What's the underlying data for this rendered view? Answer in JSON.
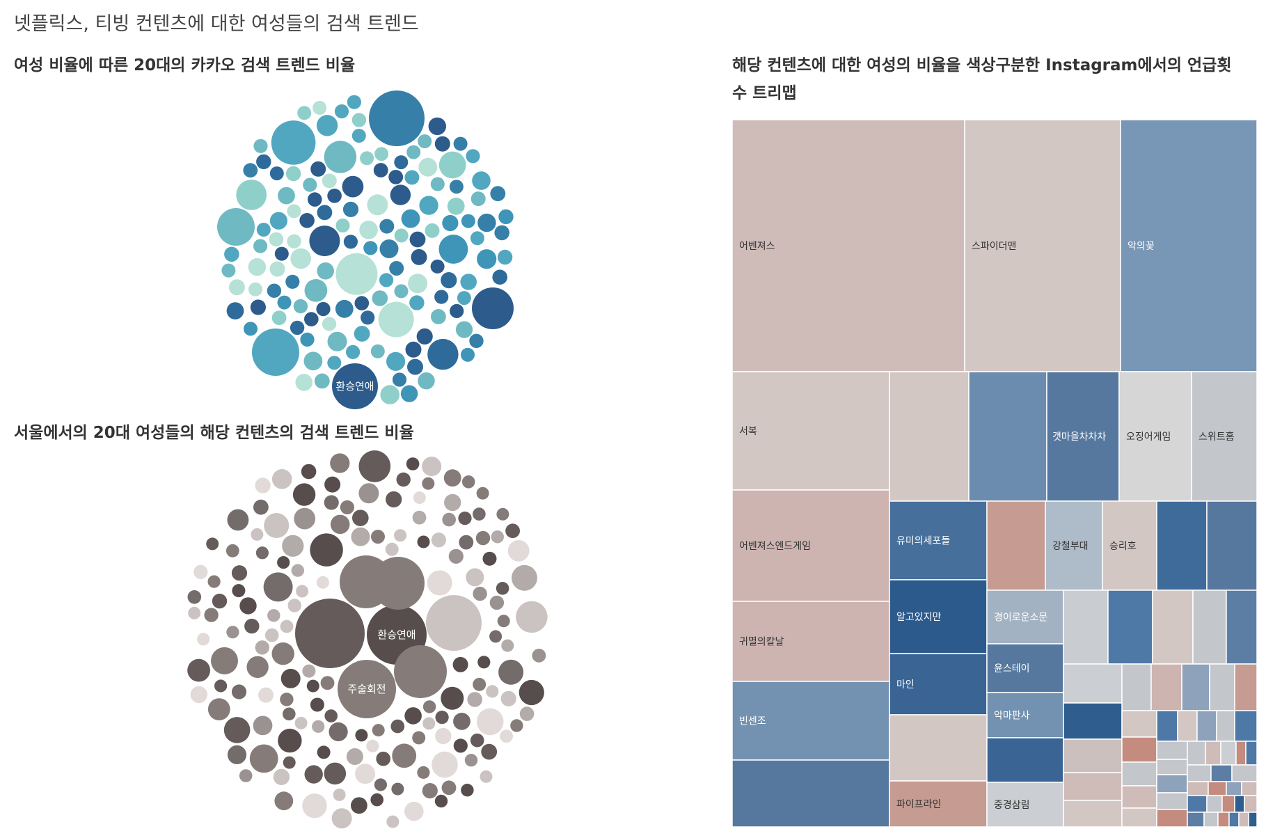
{
  "dashboard": {
    "title": "넷플릭스, 티빙 컨텐츠에 대한 여성들의 검색 트렌드"
  },
  "chart_data": [
    {
      "type": "bubble",
      "title": "여성 비율에 따른 20대의 카카오 검색 트렌드 비율",
      "labeled_bubbles": [
        {
          "label": "환승연애"
        }
      ],
      "palette": [
        "#b6e1d6",
        "#8fcfc9",
        "#6fb9c3",
        "#52a7c0",
        "#3e95b8",
        "#357fa9",
        "#2f6b9a",
        "#2c5b8c"
      ]
    },
    {
      "type": "bubble",
      "title": "서울에서의 20대 여성들의 해당 컨텐츠의 검색 트렌드 비율",
      "labeled_bubbles": [
        {
          "label": "환승연애"
        },
        {
          "label": "주술회전"
        }
      ],
      "palette": [
        "#e2dad8",
        "#cbc3c1",
        "#b3aba9",
        "#9a9290",
        "#857c7a",
        "#746c6a",
        "#655b5a",
        "#564d4c"
      ]
    },
    {
      "type": "treemap",
      "title": "해당 컨텐츠에 대한 여성의 비율을 색상구분한 Instagram에서의 언급횟수 트리맵",
      "labels": [
        "어벤져스",
        "스파이더맨",
        "악의꽃",
        "서복",
        "갯마을차차차",
        "오징어게임",
        "스위트홈",
        "어벤져스엔드게임",
        "유미의세포들",
        "강철부대",
        "승리호",
        "귀멸의칼날",
        "알고있지만",
        "경이로운소문",
        "윤스테이",
        "마인",
        "빈센조",
        "악마판사",
        "파이프라인",
        "중경삼림"
      ]
    }
  ]
}
